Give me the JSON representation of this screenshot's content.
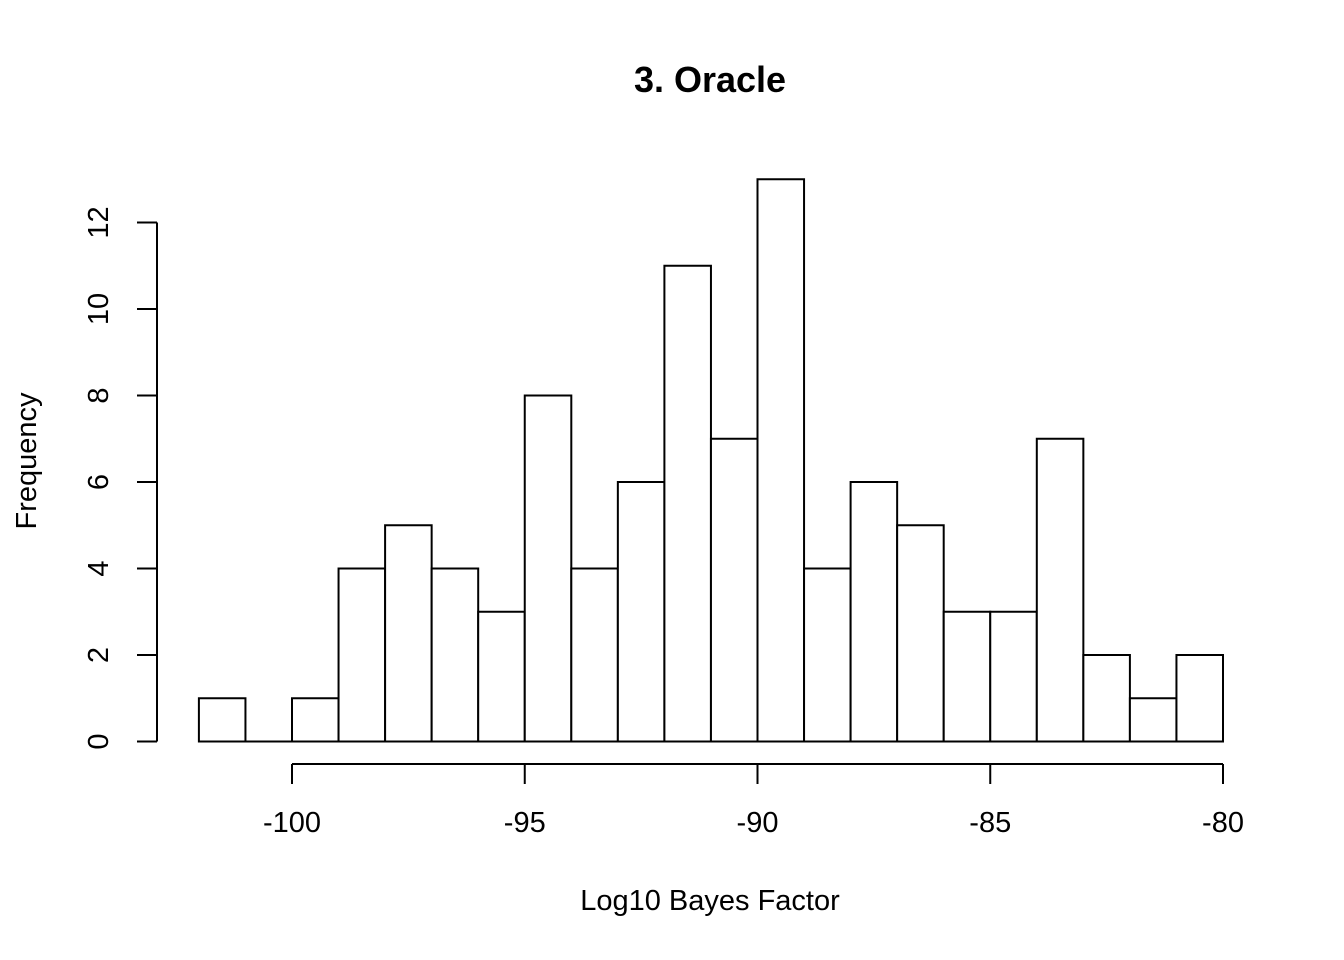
{
  "chart_data": {
    "type": "bar",
    "title": "3. Oracle",
    "xlabel": "Log10 Bayes Factor",
    "ylabel": "Frequency",
    "bin_edges": [
      -102,
      -101,
      -100,
      -99,
      -98,
      -97,
      -96,
      -95,
      -94,
      -93,
      -92,
      -91,
      -90,
      -89,
      -88,
      -87,
      -86,
      -85,
      -84,
      -83,
      -82,
      -81,
      -80
    ],
    "values": [
      1,
      0,
      1,
      4,
      5,
      4,
      3,
      8,
      4,
      6,
      11,
      7,
      13,
      4,
      6,
      5,
      3,
      3,
      7,
      2,
      1,
      2
    ],
    "xlim": [
      -102,
      -80
    ],
    "ylim": [
      0,
      13
    ],
    "x_ticks": [
      "-100",
      "-95",
      "-90",
      "-85",
      "-80"
    ],
    "y_ticks": [
      "0",
      "2",
      "4",
      "6",
      "8",
      "10",
      "12"
    ],
    "grid": false
  }
}
